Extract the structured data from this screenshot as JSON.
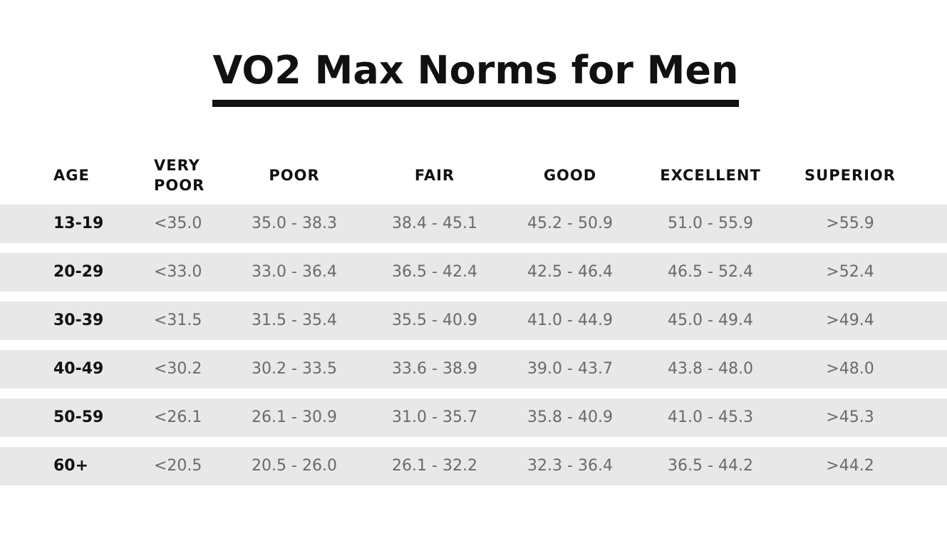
{
  "title": "VO2 Max Norms for Men",
  "headers": {
    "age": "AGE",
    "very_poor_line1": "VERY",
    "very_poor_line2": "POOR",
    "poor": "POOR",
    "fair": "FAIR",
    "good": "GOOD",
    "excellent": "EXCELLENT",
    "superior": "SUPERIOR"
  },
  "rows": [
    {
      "age": "13-19",
      "very_poor": "<35.0",
      "poor": "35.0 - 38.3",
      "fair": "38.4 - 45.1",
      "good": "45.2 - 50.9",
      "excellent": "51.0 - 55.9",
      "superior": ">55.9"
    },
    {
      "age": "20-29",
      "very_poor": "<33.0",
      "poor": "33.0 - 36.4",
      "fair": "36.5 - 42.4",
      "good": "42.5 - 46.4",
      "excellent": "46.5 - 52.4",
      "superior": ">52.4"
    },
    {
      "age": "30-39",
      "very_poor": "<31.5",
      "poor": "31.5 - 35.4",
      "fair": "35.5 - 40.9",
      "good": "41.0 - 44.9",
      "excellent": "45.0 - 49.4",
      "superior": ">49.4"
    },
    {
      "age": "40-49",
      "very_poor": "<30.2",
      "poor": "30.2 - 33.5",
      "fair": "33.6 - 38.9",
      "good": "39.0 - 43.7",
      "excellent": "43.8 - 48.0",
      "superior": ">48.0"
    },
    {
      "age": "50-59",
      "very_poor": "<26.1",
      "poor": "26.1 - 30.9",
      "fair": "31.0 - 35.7",
      "good": "35.8 - 40.9",
      "excellent": "41.0 - 45.3",
      "superior": ">45.3"
    },
    {
      "age": "60+",
      "very_poor": "<20.5",
      "poor": "20.5 - 26.0",
      "fair": "26.1 - 32.2",
      "good": "32.3 - 36.4",
      "excellent": "36.5 - 44.2",
      "superior": ">44.2"
    }
  ],
  "colors": {
    "text_dark": "#111111",
    "text_value": "#6a6a6a",
    "row_band": "#e8e8e8",
    "background": "#ffffff"
  }
}
